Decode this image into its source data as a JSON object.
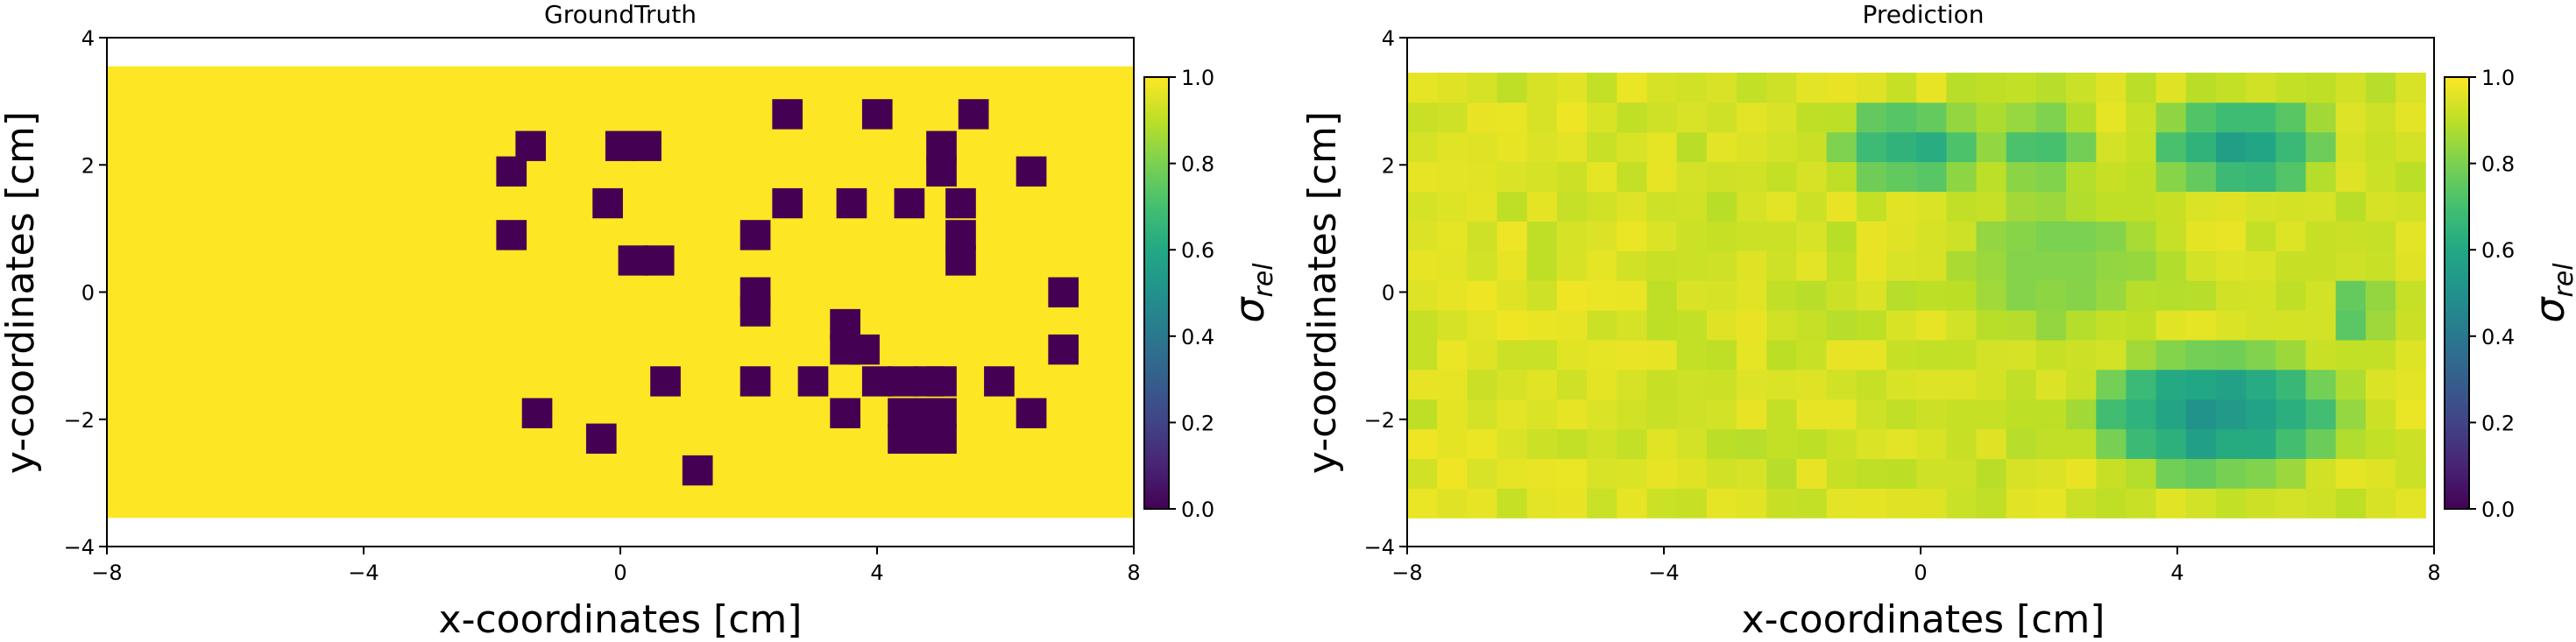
{
  "chart_data": [
    {
      "type": "heatmap",
      "title": "GroundTruth",
      "xlabel": "x-coordinates [cm]",
      "ylabel": "y-coordinates [cm]",
      "xlim": [
        -8,
        8
      ],
      "ylim": [
        -4,
        4
      ],
      "xticks": [
        -8,
        -4,
        0,
        4,
        8
      ],
      "yticks": [
        -4,
        -2,
        0,
        2,
        4
      ],
      "colorbar": {
        "label_base": "σ",
        "label_sub": "rel",
        "range": [
          0.0,
          1.0
        ],
        "ticks": [
          "0.0",
          "0.2",
          "0.4",
          "0.6",
          "0.8",
          "1.0"
        ],
        "colormap": "viridis"
      },
      "grid": {
        "x_range": [
          -8,
          8
        ],
        "y_range": [
          -3.55,
          3.55
        ],
        "cell_cm": 0.4667,
        "background_value": 1.0
      },
      "cells_value_0": [
        [
          -1.4,
          2.3
        ],
        [
          -1.7,
          1.9
        ],
        [
          -1.7,
          0.9
        ],
        [
          0.0,
          2.3
        ],
        [
          0.4,
          2.3
        ],
        [
          -0.2,
          1.4
        ],
        [
          0.2,
          0.5
        ],
        [
          0.6,
          0.5
        ],
        [
          2.1,
          0.9
        ],
        [
          2.6,
          2.8
        ],
        [
          2.6,
          1.4
        ],
        [
          3.6,
          1.4
        ],
        [
          4.0,
          2.8
        ],
        [
          4.5,
          1.4
        ],
        [
          5.0,
          2.3
        ],
        [
          5.0,
          1.9
        ],
        [
          5.5,
          2.8
        ],
        [
          5.3,
          1.4
        ],
        [
          5.3,
          0.9
        ],
        [
          5.3,
          0.5
        ],
        [
          6.4,
          1.9
        ],
        [
          2.1,
          0.0
        ],
        [
          2.1,
          -0.3
        ],
        [
          3.5,
          -0.5
        ],
        [
          3.5,
          -0.9
        ],
        [
          3.8,
          -0.9
        ],
        [
          6.9,
          0.0
        ],
        [
          6.9,
          -0.9
        ],
        [
          0.7,
          -1.4
        ],
        [
          -1.3,
          -1.9
        ],
        [
          -0.3,
          -2.3
        ],
        [
          1.2,
          -2.8
        ],
        [
          2.1,
          -1.4
        ],
        [
          3.0,
          -1.4
        ],
        [
          3.5,
          -1.9
        ],
        [
          4.0,
          -1.4
        ],
        [
          4.4,
          -1.4
        ],
        [
          4.4,
          -1.9
        ],
        [
          4.4,
          -2.3
        ],
        [
          4.8,
          -1.4
        ],
        [
          4.8,
          -1.9
        ],
        [
          4.8,
          -2.3
        ],
        [
          5.0,
          -1.4
        ],
        [
          5.0,
          -1.9
        ],
        [
          5.0,
          -2.3
        ],
        [
          5.9,
          -1.4
        ],
        [
          6.4,
          -1.9
        ]
      ]
    },
    {
      "type": "heatmap",
      "title": "Prediction",
      "xlabel": "x-coordinates [cm]",
      "ylabel": "y-coordinates [cm]",
      "xlim": [
        -8,
        8
      ],
      "ylim": [
        -4,
        4
      ],
      "xticks": [
        -8,
        -4,
        0,
        4,
        8
      ],
      "yticks": [
        -4,
        -2,
        0,
        2,
        4
      ],
      "colorbar": {
        "label_base": "σ",
        "label_sub": "rel",
        "range": [
          0.0,
          1.0
        ],
        "ticks": [
          "0.0",
          "0.2",
          "0.4",
          "0.6",
          "0.8",
          "1.0"
        ],
        "colormap": "viridis"
      },
      "grid": {
        "x_range": [
          -8,
          8
        ],
        "y_range": [
          -3.55,
          3.55
        ],
        "cell_cm": 0.4667
      },
      "pattern_note": "values ~0.9-1.0 near edges; lower (~0.55-0.75) regions around x 0..3, y 1.5..3 and x 3..6.5, y -3..-0.5",
      "low_regions": [
        {
          "cx": -0.2,
          "cy": 2.3,
          "rx": 1.6,
          "ry": 0.9,
          "min": 0.62
        },
        {
          "cx": 1.8,
          "cy": 2.3,
          "rx": 1.2,
          "ry": 0.8,
          "min": 0.72
        },
        {
          "cx": 5.0,
          "cy": 2.3,
          "rx": 1.8,
          "ry": 1.0,
          "min": 0.58
        },
        {
          "cx": 4.6,
          "cy": -1.9,
          "rx": 2.6,
          "ry": 1.3,
          "min": 0.52
        },
        {
          "cx": 2.2,
          "cy": 0.4,
          "rx": 2.4,
          "ry": 1.6,
          "min": 0.8
        },
        {
          "cx": 6.8,
          "cy": -0.3,
          "rx": 0.6,
          "ry": 0.8,
          "min": 0.74
        }
      ]
    }
  ]
}
